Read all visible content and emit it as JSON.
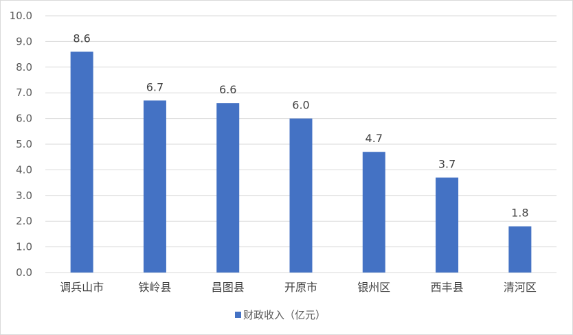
{
  "chart_data": {
    "type": "bar",
    "categories": [
      "调兵山市",
      "铁岭县",
      "昌图县",
      "开原市",
      "银州区",
      "西丰县",
      "清河区"
    ],
    "series": [
      {
        "name": "财政收入（亿元）",
        "values": [
          8.6,
          6.7,
          6.6,
          6.0,
          4.7,
          3.7,
          1.8
        ]
      }
    ],
    "data_labels": [
      "8.6",
      "6.7",
      "6.6",
      "6.0",
      "4.7",
      "3.7",
      "1.8"
    ],
    "y_ticks": [
      "0.0",
      "1.0",
      "2.0",
      "3.0",
      "4.0",
      "5.0",
      "6.0",
      "7.0",
      "8.0",
      "9.0",
      "10.0"
    ],
    "ylim": [
      0,
      10
    ],
    "title": "",
    "xlabel": "",
    "ylabel": "",
    "grid": true,
    "legend_position": "bottom",
    "bar_color": "#4472C4",
    "grid_color": "#d9d9d9"
  }
}
